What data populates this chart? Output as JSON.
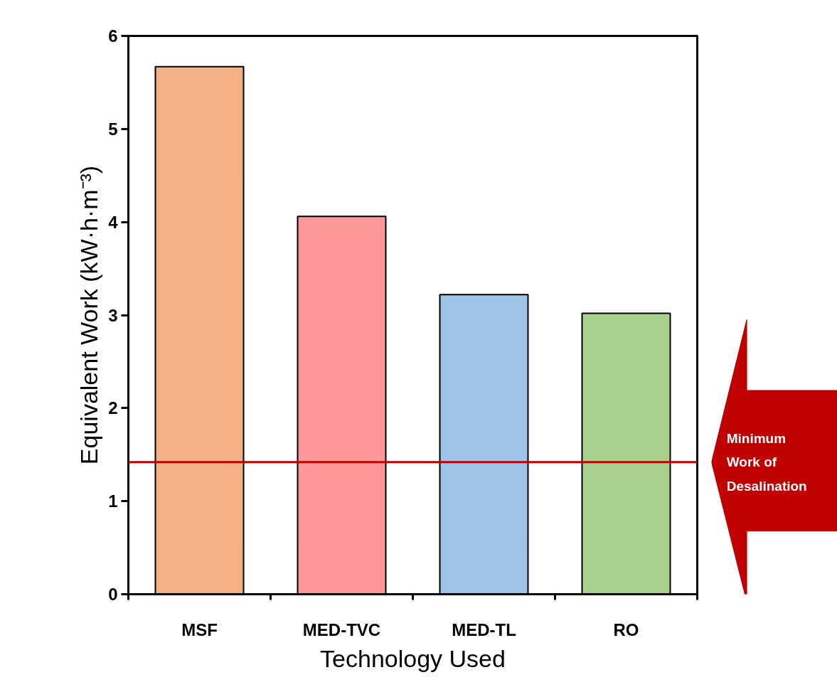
{
  "chart_data": {
    "type": "bar",
    "xlabel": "Technology Used",
    "ylabel": "Equivalent Work (kW·h·m⁻³)",
    "categories": [
      "MSF",
      "MED-TVC",
      "MED-TL",
      "RO"
    ],
    "values": [
      5.67,
      4.06,
      3.22,
      3.02
    ],
    "colors": [
      "#f4b183",
      "#ff9999",
      "#9dc3e6",
      "#a9d18e"
    ],
    "ylim": [
      0,
      6
    ],
    "yticks": [
      0,
      1,
      2,
      3,
      4,
      5,
      6
    ],
    "grid": false,
    "ref_lines": [
      {
        "axis": "y",
        "value": 1.42,
        "label": "Minimum Work of Desalination",
        "color": "#c00000"
      }
    ]
  }
}
